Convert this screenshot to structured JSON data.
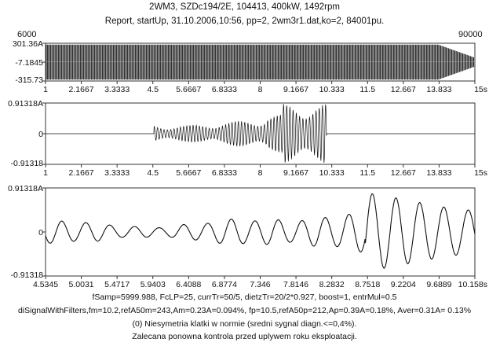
{
  "header": {
    "line1": "2WM3, SZDc194/2E, 104413, 400kW, 1492rpm",
    "line2": "Report, startUp, 31.10.2006,10:56, pp=2, 2wm3r1.dat,ko=2, 84001pu."
  },
  "sample_range": {
    "start_label": "6000",
    "end_label": "90000"
  },
  "chart_data": [
    {
      "type": "line",
      "panel": "full-run",
      "xlim": [
        1,
        15
      ],
      "xunit": "s",
      "xticks": [
        "1",
        "2.1667",
        "3.3333",
        "4.5",
        "5.6667",
        "6.8333",
        "8",
        "9.1667",
        "10.333",
        "11.5",
        "12.667",
        "13.833",
        "15s"
      ],
      "yticks": [
        "301.36A",
        "-7.1845",
        "-315.73"
      ],
      "ylim": [
        -315.73,
        301.36
      ],
      "grid": false,
      "signal": "dense oscillation filling the full range, amplitude tapering after ~13.8 s"
    },
    {
      "type": "line",
      "panel": "filtered-overview",
      "xlim": [
        1,
        15
      ],
      "xunit": "s",
      "xticks": [
        "1",
        "2.1667",
        "3.3333",
        "4.5",
        "5.6667",
        "6.8333",
        "8",
        "9.1667",
        "10.333",
        "11.5",
        "12.667",
        "13.833",
        "15s"
      ],
      "yticks": [
        "0.91318A",
        "0",
        "-0.91318"
      ],
      "ylim": [
        -0.91318,
        0.91318
      ],
      "grid": false,
      "signal": "zero until ~4.53 s, oscillation ~0.3 A growing to ~0.91318 A near 8.75-10.15 s, zero afterwards"
    },
    {
      "type": "line",
      "panel": "filtered-zoom",
      "xlim": [
        4.5345,
        10.158
      ],
      "xunit": "s",
      "xticks": [
        "4.5345",
        "5.0031",
        "5.4717",
        "5.9403",
        "6.4088",
        "6.8774",
        "7.346",
        "7.8146",
        "8.2832",
        "8.7518",
        "9.2204",
        "9.6889",
        "10.158s"
      ],
      "yticks": [
        "0.91318A",
        "0",
        "-0.91318"
      ],
      "ylim": [
        -0.91318,
        0.91318
      ],
      "grid": false,
      "signal": "amplitude ~0.25-0.45 A up to ~8.7 s, then ~0.91318 A beyond 8.75 s"
    }
  ],
  "footer": {
    "line1": "fSamp=5999.988, FcLP=25, currTr=50/5, dietzTr=20/2*0.927, boost=1, entrMul=0.5",
    "line2": "diSignalWithFilters,fm=10.2,refA50m=243,Am=0.23A=0.094%, fp=10.5,refA50p=212,Ap=0.39A=0.18%, Aver=0.31A= 0.13%",
    "line3": "(0)  Niesymetria klatki w normie (sredni sygnal diagn.<=0,4%).",
    "line4": "Zalecana ponowna kontrola przed uplywem roku eksploatacji."
  },
  "colors": {
    "trace": "#111111",
    "frame": "#333333",
    "background": "#ffffff"
  }
}
